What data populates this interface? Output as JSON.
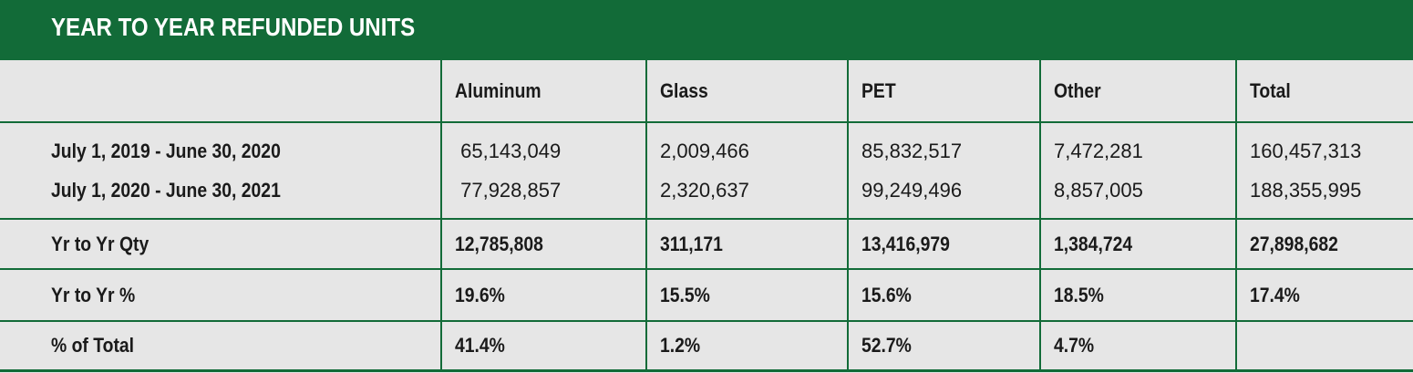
{
  "title": "YEAR TO YEAR REFUNDED UNITS",
  "columns": [
    "",
    "Aluminum",
    "Glass",
    "PET",
    "Other",
    "Total"
  ],
  "periods": {
    "label_1": "July 1, 2019 - June 30, 2020",
    "label_2": "July 1, 2020 - June 30, 2021",
    "aluminum": [
      " 65,143,049",
      " 77,928,857"
    ],
    "glass": [
      "2,009,466",
      "2,320,637"
    ],
    "pet": [
      "85,832,517",
      "99,249,496"
    ],
    "other": [
      "7,472,281",
      "8,857,005"
    ],
    "total": [
      "160,457,313",
      "188,355,995"
    ]
  },
  "yr_qty": {
    "label": "Yr to Yr Qty",
    "values": [
      "12,785,808",
      "311,171",
      "13,416,979",
      "1,384,724",
      "27,898,682"
    ]
  },
  "yr_pct": {
    "label": "Yr to Yr %",
    "values": [
      "19.6%",
      "15.5%",
      "15.6%",
      "18.5%",
      "17.4%"
    ]
  },
  "pct_total": {
    "label": "% of Total",
    "values": [
      "41.4%",
      "1.2%",
      "52.7%",
      "4.7%",
      ""
    ]
  },
  "colors": {
    "brand_green": "#126b38",
    "background": "#e6e6e6"
  }
}
